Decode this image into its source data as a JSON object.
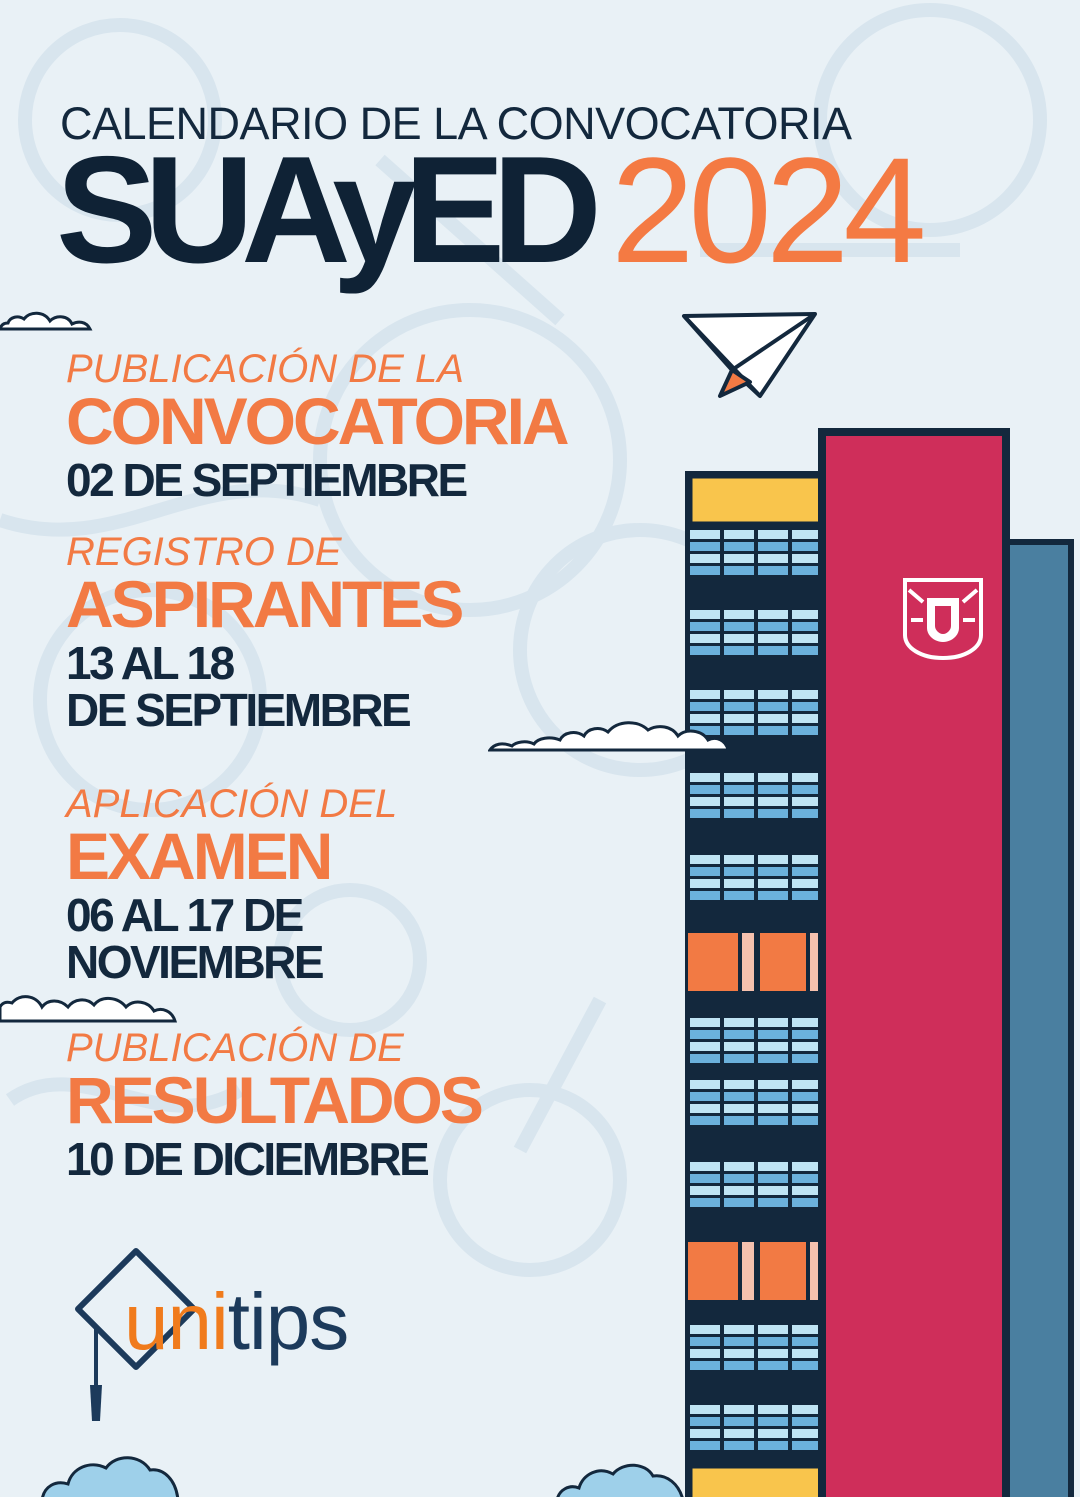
{
  "header": {
    "subtitle": "CALENDARIO DE LA CONVOCATORIA",
    "title": "SUAyED",
    "year": "2024"
  },
  "events": [
    {
      "pre": "PUBLICACIÓN DE LA",
      "main": "CONVOCATORIA",
      "date_lines": [
        "02 DE SEPTIEMBRE"
      ]
    },
    {
      "pre": "REGISTRO DE",
      "main": "ASPIRANTES",
      "date_lines": [
        "13 AL 18",
        "DE SEPTIEMBRE"
      ]
    },
    {
      "pre": "APLICACIÓN DEL",
      "main": "EXAMEN",
      "date_lines": [
        "06 AL 17 DE",
        "NOVIEMBRE"
      ]
    },
    {
      "pre": "PUBLICACIÓN DE",
      "main": "RESULTADOS",
      "date_lines": [
        "10 DE DICIEMBRE"
      ]
    }
  ],
  "logo": {
    "part1": "uni",
    "part2": "tips"
  },
  "colors": {
    "background": "#e9f1f6",
    "navy": "#13283d",
    "orange": "#f27a44",
    "tower_red": "#cf2e5a",
    "tower_yellow": "#f9c54c",
    "tower_blue": "#4a7fa0",
    "window_light": "#bfe4f4",
    "window_mid": "#6bb1dc"
  },
  "icons": [
    "paper-plane-icon",
    "cloud-icon",
    "unam-shield-icon",
    "graduation-cap-icon"
  ]
}
